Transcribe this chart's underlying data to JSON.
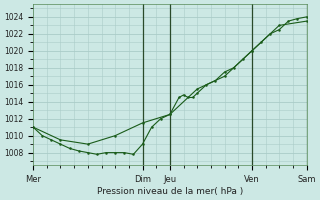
{
  "title": "Pression niveau de la mer( hPa )",
  "ylabel_values": [
    1008,
    1010,
    1012,
    1014,
    1016,
    1018,
    1020,
    1022,
    1024
  ],
  "ylim": [
    1006.5,
    1025.5
  ],
  "xlim": [
    0,
    120
  ],
  "xtick_positions": [
    0,
    48,
    60,
    96,
    120
  ],
  "xtick_labels": [
    "Mer",
    "Dim",
    "Jeu",
    "Ven",
    "Sam"
  ],
  "bg_color": "#cce8e4",
  "grid_color": "#aaccc8",
  "line_color": "#1a5c1a",
  "vline_positions": [
    48,
    60,
    96,
    120
  ],
  "series1_x": [
    0,
    4,
    8,
    12,
    16,
    20,
    24,
    28,
    32,
    36,
    40,
    44,
    48,
    52,
    56,
    60,
    64,
    66,
    68,
    70,
    72,
    76,
    80,
    84,
    88,
    92,
    96,
    100,
    104,
    108,
    112,
    116,
    120
  ],
  "series1_y": [
    1011,
    1010,
    1009.5,
    1009,
    1008.5,
    1008.2,
    1008,
    1007.8,
    1008,
    1008,
    1008,
    1007.8,
    1009,
    1011,
    1012,
    1012.5,
    1014.5,
    1014.8,
    1014.5,
    1014.5,
    1015,
    1016,
    1016.5,
    1017.5,
    1018,
    1019,
    1020,
    1021,
    1022,
    1022.5,
    1023.5,
    1023.8,
    1024
  ],
  "series2_x": [
    0,
    12,
    24,
    36,
    48,
    60,
    72,
    84,
    96,
    108,
    120
  ],
  "series2_y": [
    1011,
    1009.5,
    1009,
    1010,
    1011.5,
    1012.5,
    1015.5,
    1017,
    1020,
    1023,
    1023.5
  ]
}
